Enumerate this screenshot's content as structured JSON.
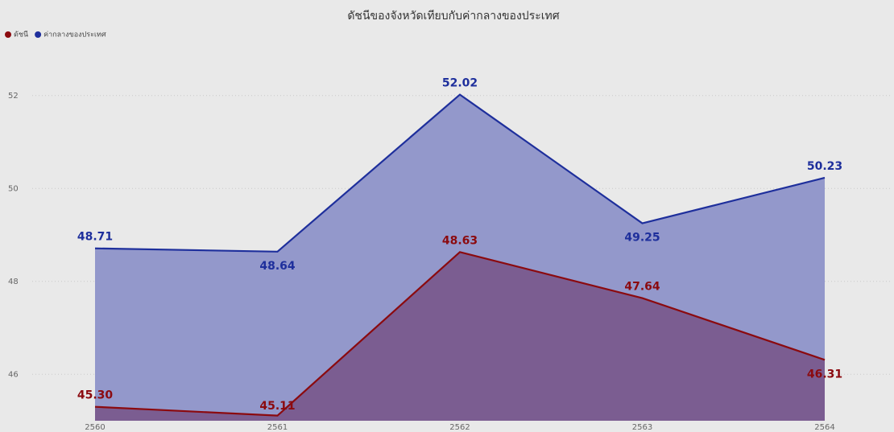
{
  "chart_data": {
    "type": "area",
    "title": "ดัชนีของจังหวัดเทียบกับค่ากลางของประเทศ",
    "categories": [
      "2560",
      "2561",
      "2562",
      "2563",
      "2564"
    ],
    "series": [
      {
        "name": "ดัชนี",
        "color": "#8b0a0f",
        "values": [
          45.3,
          45.11,
          48.63,
          47.64,
          46.31
        ],
        "value_labels": [
          "45.30",
          "45.11",
          "48.63",
          "47.64",
          "46.31"
        ]
      },
      {
        "name": "ค่ากลางของประเทศ",
        "color": "#1e2f9c",
        "values": [
          48.71,
          48.64,
          52.02,
          49.25,
          50.23
        ]
      }
    ],
    "ylim": [
      45,
      53
    ],
    "yticks": [
      46,
      48,
      50,
      52
    ],
    "grid": true,
    "legend": "top-left"
  }
}
